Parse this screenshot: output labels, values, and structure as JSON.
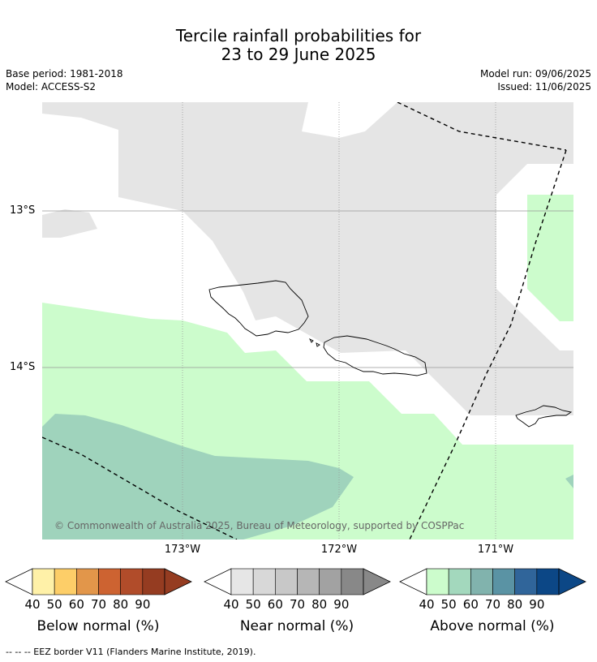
{
  "title_line1": "Tercile rainfall probabilities for",
  "title_line2": "23 to 29 June 2025",
  "base_period": "Base period: 1981-2018",
  "model": "Model: ACCESS-S2",
  "model_run": "Model run: 09/06/2025",
  "issued": "Issued: 11/06/2025",
  "latitudes": [
    "13°S",
    "14°S"
  ],
  "longitudes": [
    "173°W",
    "172°W",
    "171°W"
  ],
  "copyright": "© Commonwealth of Australia 2025, Bureau of Meteorology, supported by COSPPac",
  "colorbars": [
    {
      "label": "Below normal (%)",
      "ticks": [
        "40",
        "50",
        "60",
        "70",
        "80",
        "90"
      ],
      "colors": [
        "#fff1a8",
        "#fdce68",
        "#e2964a",
        "#cd6331",
        "#b14c2a",
        "#953c21"
      ]
    },
    {
      "label": "Near normal (%)",
      "ticks": [
        "40",
        "50",
        "60",
        "70",
        "80",
        "90"
      ],
      "colors": [
        "#e6e6e6",
        "#d8d8d8",
        "#c8c8c8",
        "#b6b6b6",
        "#a2a2a2",
        "#888888"
      ]
    },
    {
      "label": "Above normal (%)",
      "ticks": [
        "40",
        "50",
        "60",
        "70",
        "80",
        "90"
      ],
      "colors": [
        "#ccfccc",
        "#a3d8bd",
        "#81b3ad",
        "#5a93a4",
        "#30659a",
        "#0c4786"
      ]
    }
  ],
  "footnote": "--  --  -- EEZ border V11 (Flanders Marine Institute, 2019).",
  "map_colors": {
    "near": "#e5e5e5",
    "above40": "#ccfccc",
    "above50": "#9fd3bc"
  }
}
